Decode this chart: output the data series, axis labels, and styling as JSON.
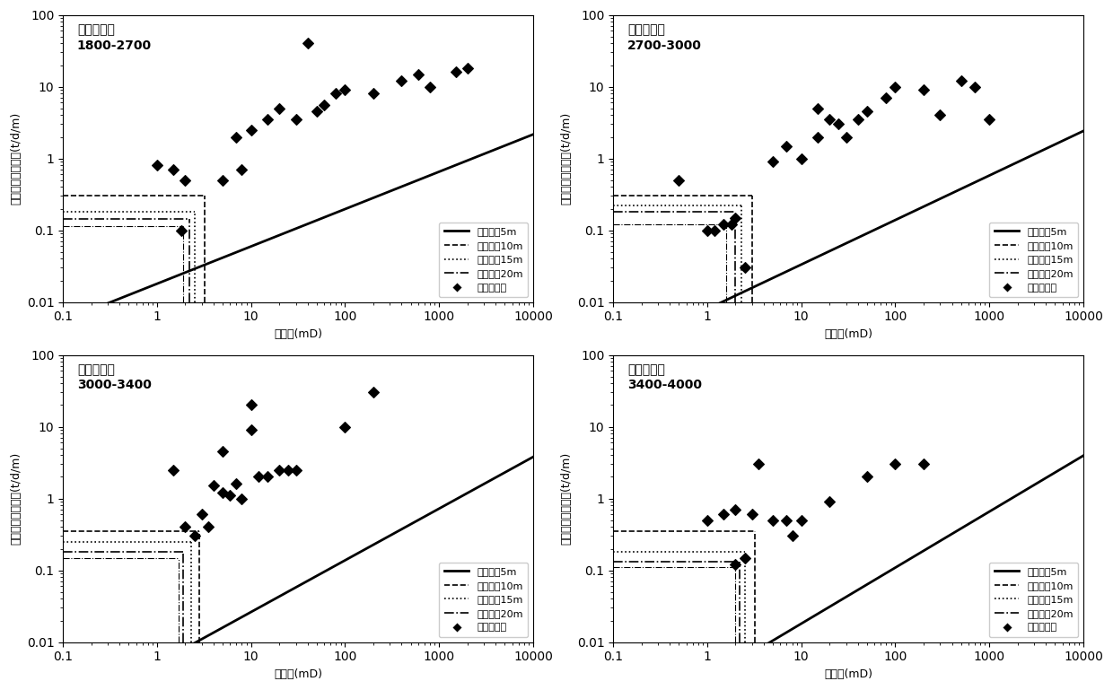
{
  "subplots": [
    {
      "title": "深度区间：\n1800-2700",
      "xlim": [
        0.1,
        10000
      ],
      "ylim": [
        0.01,
        100
      ],
      "curve_params": {
        "a": 0.018,
        "b": 0.52
      },
      "hlines": [
        0.3,
        0.18,
        0.145,
        0.115
      ],
      "vline_x": [
        3.2,
        2.5,
        2.2,
        1.9
      ],
      "scatter_x": [
        1.0,
        1.5,
        1.8,
        2.0,
        5.0,
        7.0,
        8.0,
        10.0,
        15.0,
        20.0,
        30.0,
        50.0,
        60.0,
        80.0,
        100.0,
        200.0,
        400.0,
        600.0,
        800.0,
        1500.0,
        2000.0,
        40.0
      ],
      "scatter_y": [
        0.8,
        0.7,
        0.1,
        0.5,
        0.5,
        2.0,
        0.7,
        2.5,
        3.5,
        5.0,
        3.5,
        4.5,
        5.5,
        8.0,
        9.0,
        8.0,
        12.0,
        15.0,
        10.0,
        16.0,
        18.0,
        40.0
      ]
    },
    {
      "title": "深度区间：\n2700-3000",
      "xlim": [
        0.1,
        10000
      ],
      "ylim": [
        0.01,
        100
      ],
      "curve_params": {
        "a": 0.008,
        "b": 0.62
      },
      "hlines": [
        0.3,
        0.22,
        0.18,
        0.12
      ],
      "vline_x": [
        3.0,
        2.3,
        2.0,
        1.6
      ],
      "scatter_x": [
        0.5,
        1.0,
        1.2,
        1.5,
        2.0,
        2.5,
        5.0,
        7.0,
        10.0,
        15.0,
        20.0,
        25.0,
        30.0,
        40.0,
        50.0,
        80.0,
        100.0,
        200.0,
        300.0,
        500.0,
        700.0,
        1000.0,
        15.0,
        1.8
      ],
      "scatter_y": [
        0.5,
        0.1,
        0.1,
        0.12,
        0.15,
        0.03,
        0.9,
        1.5,
        1.0,
        2.0,
        3.5,
        3.0,
        2.0,
        3.5,
        4.5,
        7.0,
        10.0,
        9.0,
        4.0,
        12.0,
        10.0,
        3.5,
        5.0,
        0.12
      ]
    },
    {
      "title": "深度区间：\n3000-3400",
      "xlim": [
        0.1,
        10000
      ],
      "ylim": [
        0.01,
        100
      ],
      "curve_params": {
        "a": 0.005,
        "b": 0.72
      },
      "hlines": [
        0.35,
        0.25,
        0.18,
        0.15
      ],
      "vline_x": [
        2.8,
        2.3,
        1.9,
        1.7
      ],
      "scatter_x": [
        1.5,
        2.0,
        2.5,
        3.0,
        4.0,
        5.0,
        7.0,
        8.0,
        10.0,
        12.0,
        15.0,
        20.0,
        25.0,
        30.0,
        100.0,
        200.0,
        5.0,
        6.0,
        10.0,
        3.5,
        0.03
      ],
      "scatter_y": [
        2.5,
        0.4,
        0.3,
        0.6,
        1.5,
        1.2,
        1.6,
        1.0,
        9.0,
        2.0,
        2.0,
        2.5,
        2.5,
        2.5,
        10.0,
        30.0,
        4.5,
        1.1,
        20.0,
        0.4,
        0.03
      ]
    },
    {
      "title": "深度区间：\n3400-4000",
      "xlim": [
        0.1,
        10000
      ],
      "ylim": [
        0.01,
        100
      ],
      "curve_params": {
        "a": 0.003,
        "b": 0.78
      },
      "hlines": [
        0.35,
        0.18,
        0.13,
        0.11
      ],
      "vline_x": [
        3.2,
        2.5,
        2.2,
        2.0
      ],
      "scatter_x": [
        1.0,
        1.5,
        2.0,
        2.5,
        3.0,
        5.0,
        7.0,
        8.0,
        10.0,
        20.0,
        50.0,
        100.0,
        200.0,
        2.0,
        3.5
      ],
      "scatter_y": [
        0.5,
        0.6,
        0.7,
        0.15,
        0.6,
        0.5,
        0.5,
        0.3,
        0.5,
        0.9,
        2.0,
        3.0,
        3.0,
        0.12,
        3.0
      ]
    }
  ],
  "legend_labels": [
    "开发厚度5m",
    "开发厚度10m",
    "开发厚度15m",
    "开发厚度20m",
    "实测渗透率"
  ],
  "line_styles": [
    {
      "ls": "-",
      "lw": 2.0,
      "color": "black"
    },
    {
      "ls": "--",
      "lw": 1.2,
      "color": "black"
    },
    {
      "ls": ":",
      "lw": 1.2,
      "color": "black"
    },
    {
      "ls": "-.",
      "lw": 1.2,
      "color": "black"
    },
    {
      "ls": "-.",
      "lw": 0.8,
      "color": "black"
    }
  ],
  "xlabel": "渗透率(mD)",
  "ylabel": "单位厚度日产液量(t/d/m)",
  "background_color": "white",
  "font_size_label": 9,
  "font_size_title": 10,
  "font_size_legend": 8
}
